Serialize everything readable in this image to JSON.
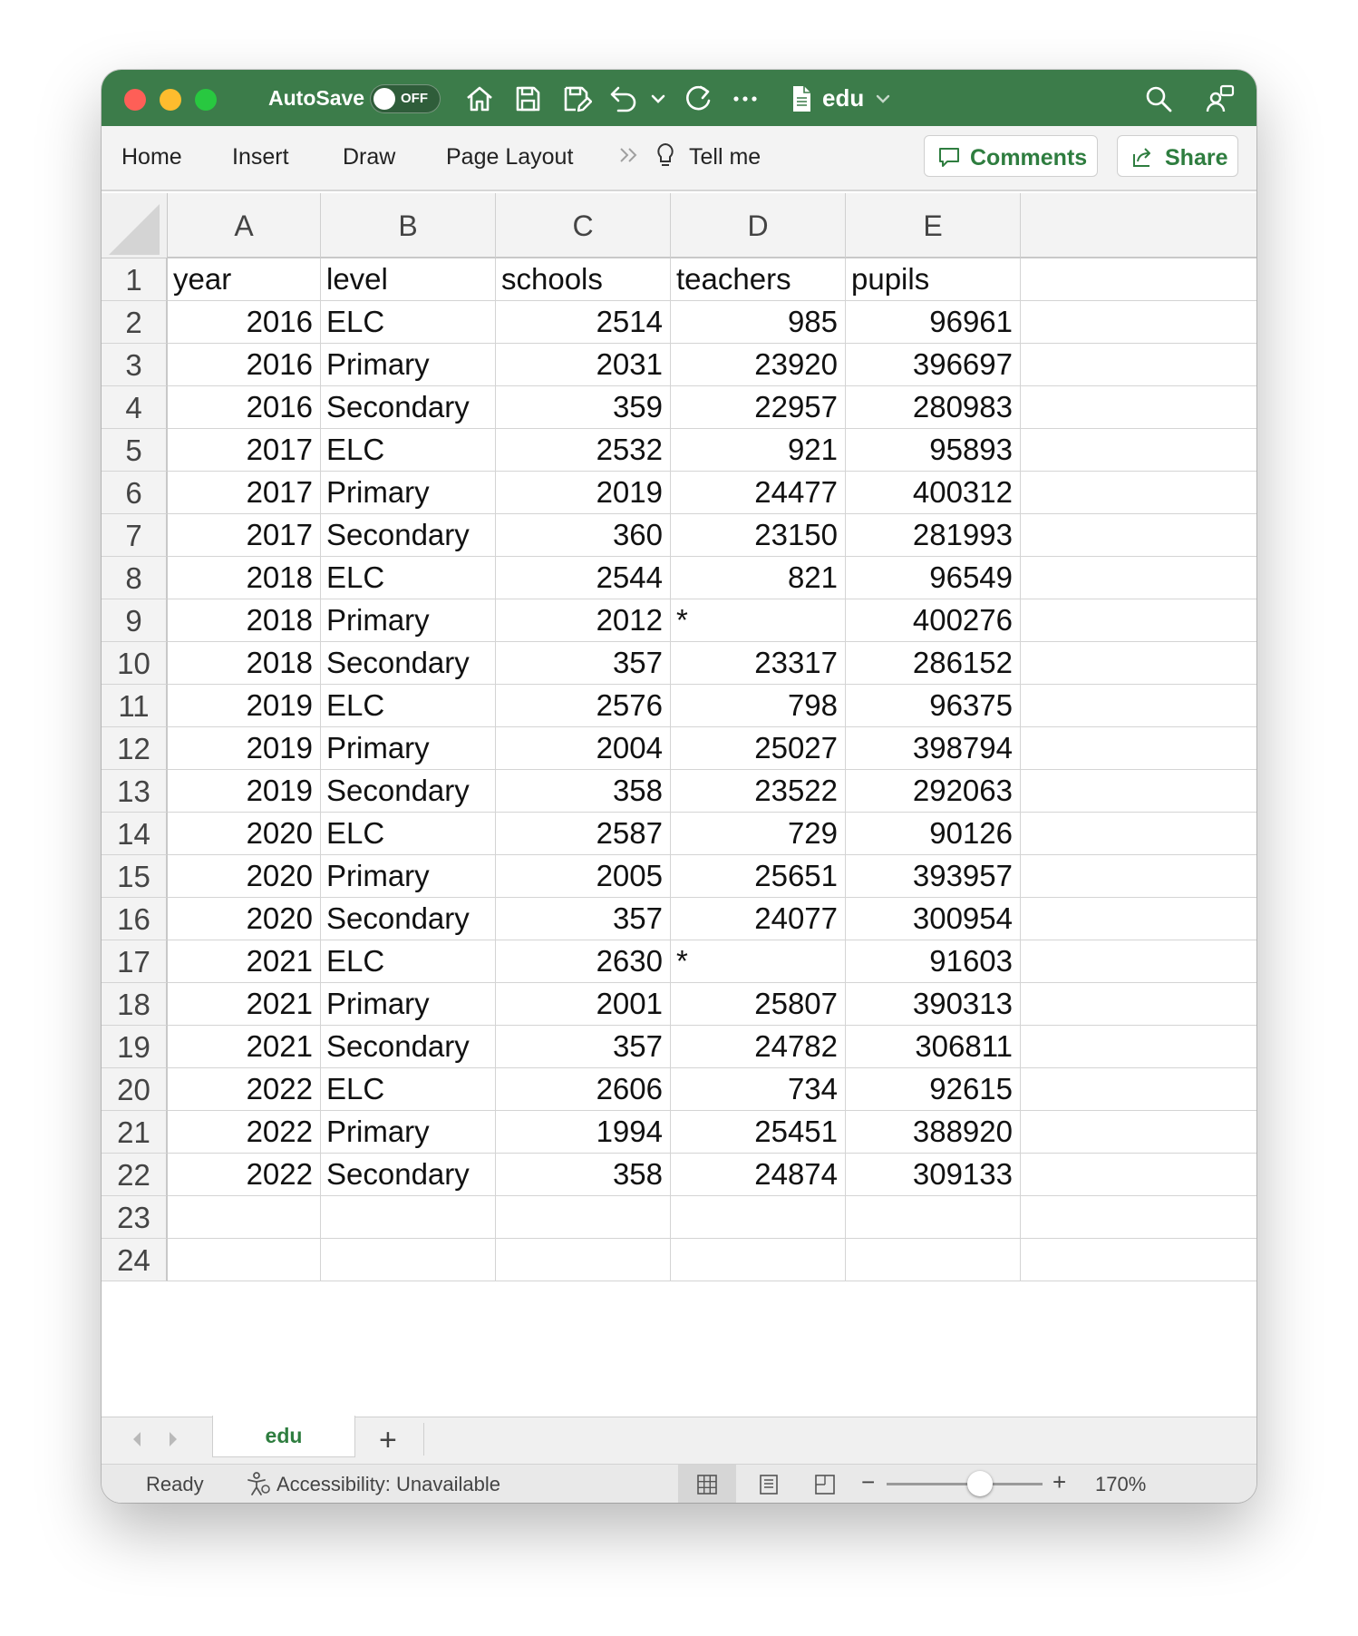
{
  "titlebar": {
    "autosave_label": "AutoSave",
    "autosave_state": "OFF",
    "doc_name": "edu",
    "icons": [
      "home-icon",
      "save-icon",
      "save-as-icon",
      "undo-icon",
      "chevron-down-icon",
      "redo-icon",
      "more-icon",
      "document-icon",
      "search-icon",
      "account-icon"
    ]
  },
  "ribbon": {
    "tabs": [
      "Home",
      "Insert",
      "Draw",
      "Page Layout"
    ],
    "tell_me": "Tell me",
    "comments_label": "Comments",
    "share_label": "Share"
  },
  "sheet": {
    "columns": [
      "A",
      "B",
      "C",
      "D",
      "E"
    ],
    "row_numbers": [
      "1",
      "2",
      "3",
      "4",
      "5",
      "6",
      "7",
      "8",
      "9",
      "10",
      "11",
      "12",
      "13",
      "14",
      "15",
      "16",
      "17",
      "18",
      "19",
      "20",
      "21",
      "22",
      "23",
      "24"
    ],
    "rows": [
      [
        "year",
        "level",
        "schools",
        "teachers",
        "pupils"
      ],
      [
        "2016",
        "ELC",
        "2514",
        "985",
        "96961"
      ],
      [
        "2016",
        "Primary",
        "2031",
        "23920",
        "396697"
      ],
      [
        "2016",
        "Secondary",
        "359",
        "22957",
        "280983"
      ],
      [
        "2017",
        "ELC",
        "2532",
        "921",
        "95893"
      ],
      [
        "2017",
        "Primary",
        "2019",
        "24477",
        "400312"
      ],
      [
        "2017",
        "Secondary",
        "360",
        "23150",
        "281993"
      ],
      [
        "2018",
        "ELC",
        "2544",
        "821",
        "96549"
      ],
      [
        "2018",
        "Primary",
        "2012",
        "*",
        "400276"
      ],
      [
        "2018",
        "Secondary",
        "357",
        "23317",
        "286152"
      ],
      [
        "2019",
        "ELC",
        "2576",
        "798",
        "96375"
      ],
      [
        "2019",
        "Primary",
        "2004",
        "25027",
        "398794"
      ],
      [
        "2019",
        "Secondary",
        "358",
        "23522",
        "292063"
      ],
      [
        "2020",
        "ELC",
        "2587",
        "729",
        "90126"
      ],
      [
        "2020",
        "Primary",
        "2005",
        "25651",
        "393957"
      ],
      [
        "2020",
        "Secondary",
        "357",
        "24077",
        "300954"
      ],
      [
        "2021",
        "ELC",
        "2630",
        "*",
        "91603"
      ],
      [
        "2021",
        "Primary",
        "2001",
        "25807",
        "390313"
      ],
      [
        "2021",
        "Secondary",
        "357",
        "24782",
        "306811"
      ],
      [
        "2022",
        "ELC",
        "2606",
        "734",
        "92615"
      ],
      [
        "2022",
        "Primary",
        "1994",
        "25451",
        "388920"
      ],
      [
        "2022",
        "Secondary",
        "358",
        "24874",
        "309133"
      ],
      [
        "",
        "",
        "",
        "",
        ""
      ],
      [
        "",
        "",
        "",
        "",
        ""
      ]
    ]
  },
  "sheet_tabs": {
    "active": "edu",
    "add_symbol": "+"
  },
  "status": {
    "ready": "Ready",
    "accessibility": "Accessibility: Unavailable",
    "zoom_label": "170%",
    "zoom_minus": "−",
    "zoom_plus": "+",
    "zoom_level": 0.6
  },
  "colors": {
    "title_green": "#3c7c4a",
    "accent_green": "#2e7d3f"
  }
}
